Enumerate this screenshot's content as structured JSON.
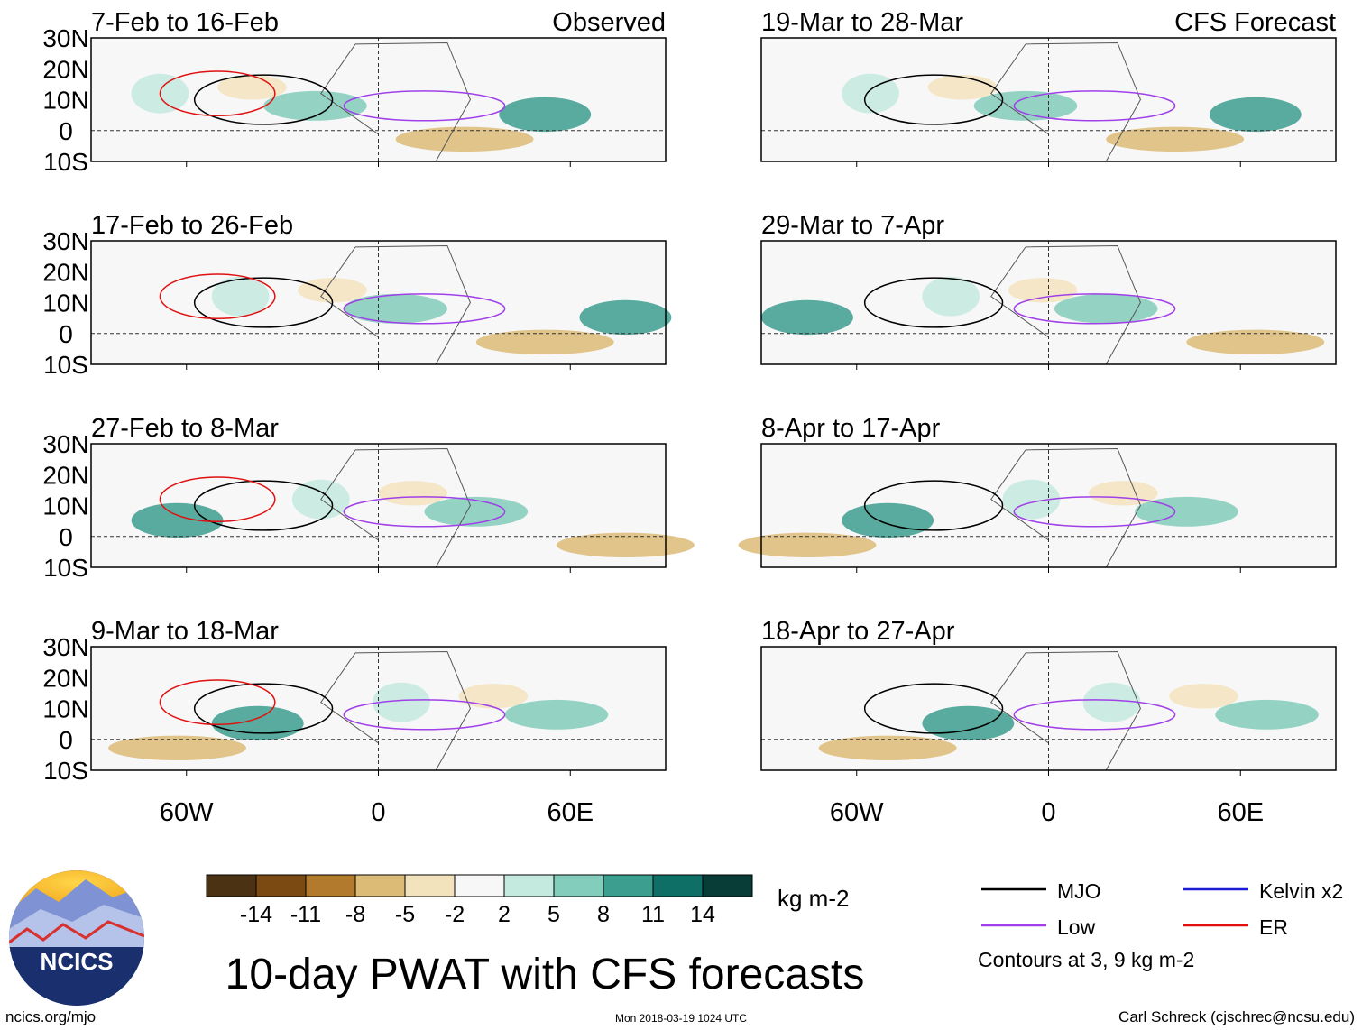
{
  "map_data": {
    "type": "map_panels",
    "title": "10-day PWAT with CFS forecasts",
    "units": "kg m-2",
    "lat_labels": [
      "30N",
      "20N",
      "10N",
      "0",
      "10S"
    ],
    "lon_labels": [
      "60W",
      "0",
      "60E"
    ],
    "panels": [
      {
        "label": "7-Feb to 16-Feb",
        "tag": "Observed"
      },
      {
        "label": "19-Mar to 28-Mar",
        "tag": "CFS Forecast"
      },
      {
        "label": "17-Feb to 26-Feb",
        "tag": ""
      },
      {
        "label": "29-Mar to 7-Apr",
        "tag": ""
      },
      {
        "label": "27-Feb to 8-Mar",
        "tag": ""
      },
      {
        "label": "8-Apr to 17-Apr",
        "tag": ""
      },
      {
        "label": "9-Mar to 18-Mar",
        "tag": ""
      },
      {
        "label": "18-Apr to 27-Apr",
        "tag": ""
      }
    ],
    "colorbar": {
      "colors": [
        "#4a3213",
        "#7b4a12",
        "#b27a2c",
        "#dcbb77",
        "#f3e3bd",
        "#f7f7f7",
        "#c4eadf",
        "#82cdbb",
        "#3c9e8e",
        "#0e6f66",
        "#073c37"
      ],
      "ticks": [
        "-14",
        "-11",
        "-8",
        "-5",
        "-2",
        "2",
        "5",
        "8",
        "11",
        "14"
      ]
    },
    "legend": [
      {
        "label": "MJO",
        "color": "#000000"
      },
      {
        "label": "Kelvin x2",
        "color": "#1c1cd6"
      },
      {
        "label": "Low",
        "color": "#a040e8"
      },
      {
        "label": "ER",
        "color": "#e01010"
      }
    ],
    "contour_note": "Contours at 3, 9 kg m-2"
  },
  "logo": {
    "text": "NCICS"
  },
  "footer": {
    "website": "ncics.org/mjo",
    "timestamp": "Mon 2018-03-19 1024 UTC",
    "credit": "Carl Schreck (cjschrec@ncsu.edu)"
  }
}
